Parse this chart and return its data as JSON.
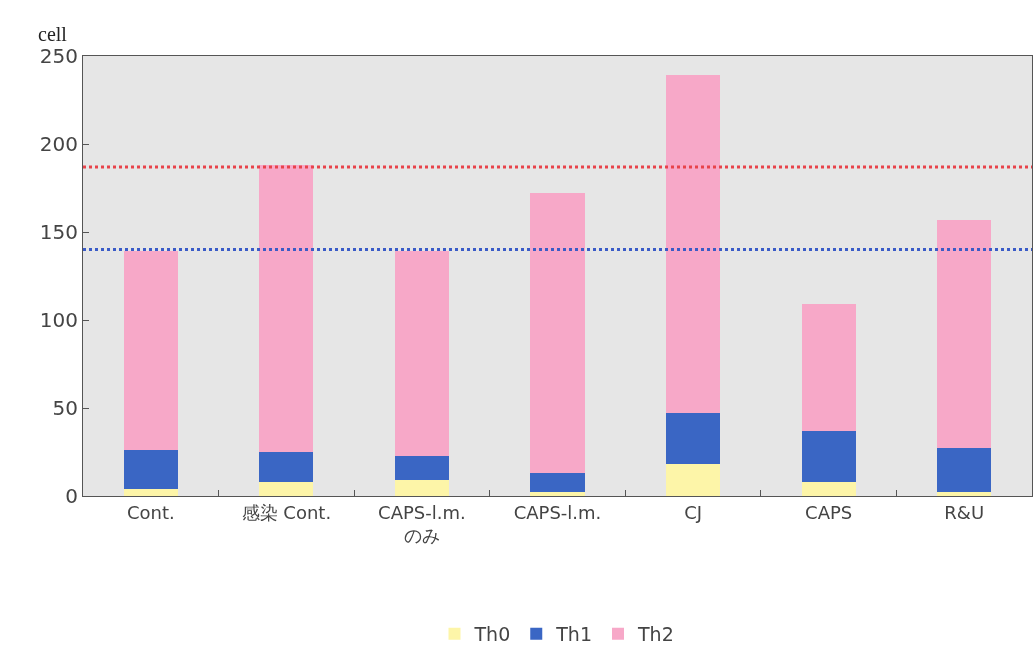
{
  "chart_data": {
    "type": "bar",
    "stacked": true,
    "ylabel": "cell",
    "categories": [
      "Cont.",
      "感染 Cont.",
      "CAPS-l.m.\nのみ",
      "CAPS-l.m.",
      "CJ",
      "CAPS",
      "R&U"
    ],
    "series": [
      {
        "name": "Th0",
        "color": "#fdf5a8",
        "values": [
          4,
          8,
          9,
          2,
          18,
          8,
          2
        ]
      },
      {
        "name": "Th1",
        "color": "#3a66c4",
        "values": [
          22,
          17,
          14,
          11,
          29,
          29,
          25
        ]
      },
      {
        "name": "Th2",
        "color": "#f7a8c8",
        "values": [
          113,
          163,
          116,
          159,
          192,
          72,
          130
        ]
      }
    ],
    "ylim": [
      0,
      250
    ],
    "yticks": [
      0,
      50,
      100,
      150,
      200,
      250
    ],
    "grid": false,
    "legend": "bottom",
    "ref_lines": [
      {
        "axis": "y",
        "value": 187,
        "color": "#e8434a",
        "line_style": "dotted"
      },
      {
        "axis": "y",
        "value": 140,
        "color": "#3a5bc7",
        "line_style": "dotted"
      }
    ]
  }
}
